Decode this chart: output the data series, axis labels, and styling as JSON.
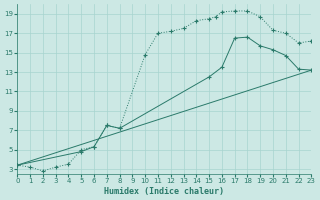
{
  "xlabel": "Humidex (Indice chaleur)",
  "bg_color": "#cce8e4",
  "grid_color": "#a8d4cf",
  "line_color": "#2a7a6a",
  "xlim": [
    0,
    23
  ],
  "ylim": [
    2.5,
    20
  ],
  "xticks": [
    0,
    1,
    2,
    3,
    4,
    5,
    6,
    7,
    8,
    9,
    10,
    11,
    12,
    13,
    14,
    15,
    16,
    17,
    18,
    19,
    20,
    21,
    22,
    23
  ],
  "yticks": [
    3,
    5,
    7,
    9,
    11,
    13,
    15,
    17,
    19
  ],
  "curve1_x": [
    0,
    1,
    2,
    3,
    4,
    5,
    6,
    7,
    8,
    10,
    11,
    12,
    13,
    14,
    15,
    15.5,
    16,
    17,
    18,
    19,
    20,
    21,
    22,
    23
  ],
  "curve1_y": [
    3.4,
    3.2,
    2.8,
    3.2,
    3.5,
    5.0,
    5.3,
    7.5,
    7.2,
    14.8,
    17.0,
    17.2,
    17.5,
    18.3,
    18.5,
    18.7,
    19.2,
    19.3,
    19.3,
    18.7,
    17.3,
    17.0,
    16.0,
    16.2
  ],
  "curve2_x": [
    0,
    5,
    6,
    7,
    8,
    15,
    16,
    17,
    18,
    19,
    20,
    21,
    22,
    23
  ],
  "curve2_y": [
    3.4,
    4.8,
    5.3,
    7.5,
    7.2,
    12.5,
    13.5,
    16.5,
    16.6,
    15.7,
    15.3,
    14.7,
    13.3,
    13.2
  ],
  "curve3_x": [
    0,
    23
  ],
  "curve3_y": [
    3.4,
    13.2
  ]
}
